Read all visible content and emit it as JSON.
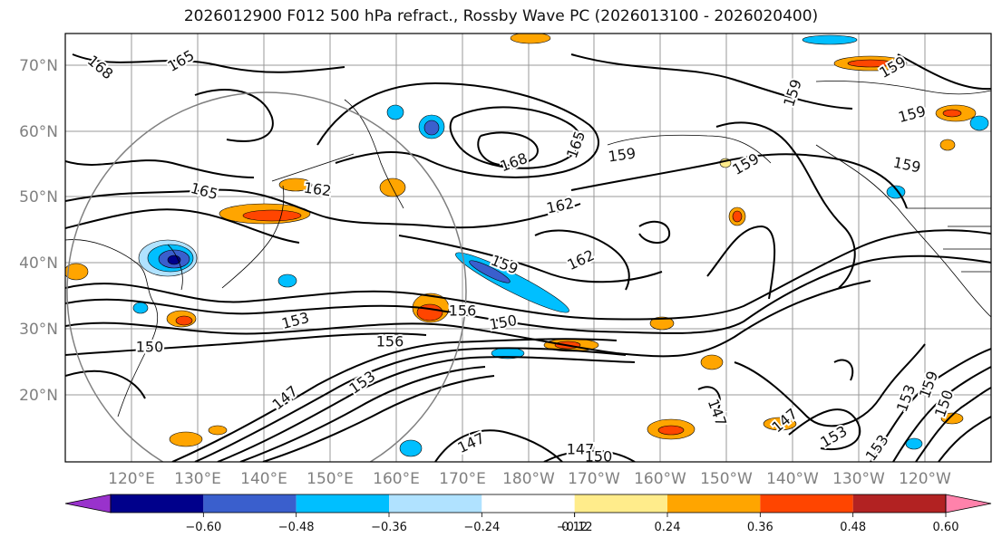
{
  "title": "2026012900 F012 500 hPa refract., Rossby Wave PC (2026013100 - 2026020400)",
  "latitude_labels": [
    "70°N",
    "60°N",
    "50°N",
    "40°N",
    "30°N",
    "20°N"
  ],
  "longitude_labels": [
    "120°E",
    "130°E",
    "140°E",
    "150°E",
    "160°E",
    "170°E",
    "180°W",
    "170°W",
    "160°W",
    "150°W",
    "140°W",
    "130°W",
    "120°W"
  ],
  "contour_labels": [
    {
      "text": "168",
      "name": "contour-label-168-nw"
    },
    {
      "text": "165",
      "name": "contour-label-165-n"
    },
    {
      "text": "165",
      "name": "contour-label-165-w"
    },
    {
      "text": "162",
      "name": "contour-label-162-japan"
    },
    {
      "text": "168",
      "name": "contour-label-168-low"
    },
    {
      "text": "165",
      "name": "contour-label-165-low"
    },
    {
      "text": "162",
      "name": "contour-label-162-central"
    },
    {
      "text": "162",
      "name": "contour-label-162-east"
    },
    {
      "text": "159",
      "name": "contour-label-159-central"
    },
    {
      "text": "159",
      "name": "contour-label-159-alaska"
    },
    {
      "text": "159",
      "name": "contour-label-159-gulf"
    },
    {
      "text": "159",
      "name": "contour-label-159-ne"
    },
    {
      "text": "159",
      "name": "contour-label-159-canada"
    },
    {
      "text": "159",
      "name": "contour-label-159-pnw"
    },
    {
      "text": "159",
      "name": "contour-label-159-top"
    },
    {
      "text": "156",
      "name": "contour-label-156-central"
    },
    {
      "text": "156",
      "name": "contour-label-156-jet"
    },
    {
      "text": "150",
      "name": "contour-label-150-central"
    },
    {
      "text": "153",
      "name": "contour-label-153-w"
    },
    {
      "text": "150",
      "name": "contour-label-150-w"
    },
    {
      "text": "153",
      "name": "contour-label-153-jet"
    },
    {
      "text": "153",
      "name": "contour-label-153-south"
    },
    {
      "text": "147",
      "name": "contour-label-147-south"
    },
    {
      "text": "147",
      "name": "contour-label-147-bottom"
    },
    {
      "text": "150",
      "name": "contour-label-150-bottom"
    },
    {
      "text": "147",
      "name": "contour-label-147-east"
    },
    {
      "text": "147",
      "name": "contour-label-147-ne"
    },
    {
      "text": "153",
      "name": "contour-label-153-se"
    },
    {
      "text": "153",
      "name": "contour-label-153-far-east"
    },
    {
      "text": "159",
      "name": "contour-label-159-se"
    },
    {
      "text": "150",
      "name": "contour-label-150-se"
    },
    {
      "text": "147",
      "name": "contour-label-147-sw"
    }
  ],
  "colorbar": {
    "colors": [
      "#9932cc",
      "#00008b",
      "#3a5fcd",
      "#00bfff",
      "#b0e2ff",
      "#ffffff",
      "#ffec8b",
      "#ffa500",
      "#ff4500",
      "#b22222",
      "#ff82ab"
    ],
    "ticks": [
      -0.6,
      -0.48,
      -0.36,
      -0.24,
      -0.12,
      0.12,
      0.24,
      0.36,
      0.48,
      0.6
    ],
    "tick_labels": [
      "−0.60",
      "−0.48",
      "−0.36",
      "−0.24",
      "−0.12",
      "0.12",
      "0.24",
      "0.36",
      "0.48",
      "0.60"
    ]
  }
}
